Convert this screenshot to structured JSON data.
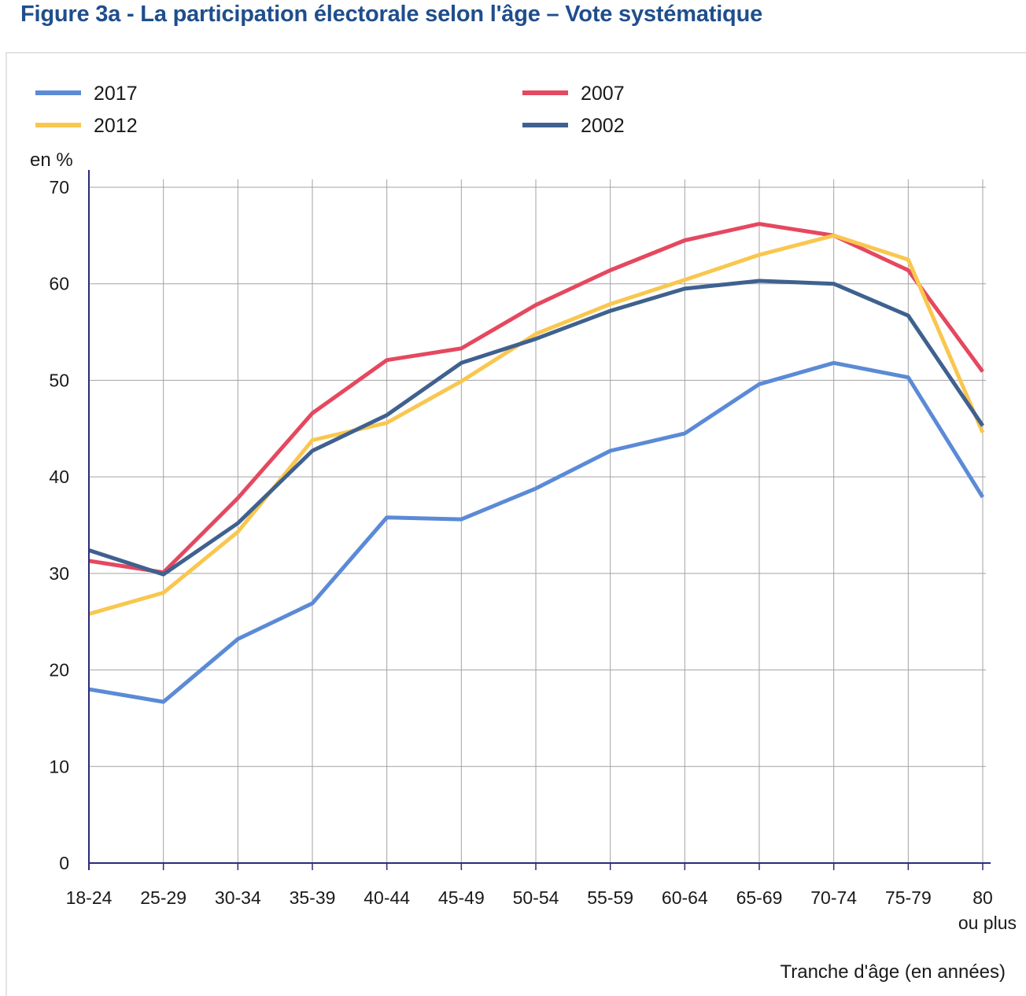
{
  "title": "Figure 3a - La participation électorale selon l'âge – Vote systématique",
  "chart_data": {
    "type": "line",
    "title": "Figure 3a - La participation électorale selon l'âge – Vote systématique",
    "ylabel": "en %",
    "xlabel": "Tranche d'âge (en années)",
    "ylim": [
      0,
      70
    ],
    "yticks": [
      0,
      10,
      20,
      30,
      40,
      50,
      60,
      70
    ],
    "grid": true,
    "legend": "top",
    "categories": [
      "18-24",
      "25-29",
      "30-34",
      "35-39",
      "40-44",
      "45-49",
      "50-54",
      "55-59",
      "60-64",
      "65-69",
      "70-74",
      "75-79",
      "80"
    ],
    "last_category_line2": "ou plus",
    "series": [
      {
        "name": "2017",
        "color": "#5b8ad6",
        "values": [
          18.0,
          16.7,
          23.2,
          26.9,
          35.8,
          35.6,
          38.8,
          42.7,
          44.5,
          49.6,
          51.8,
          50.3,
          37.9
        ]
      },
      {
        "name": "2007",
        "color": "#e5485f",
        "values": [
          31.3,
          30.1,
          37.8,
          46.6,
          52.1,
          53.3,
          57.8,
          61.4,
          64.5,
          66.2,
          65.0,
          61.4,
          50.9
        ]
      },
      {
        "name": "2012",
        "color": "#f9c74f",
        "values": [
          25.8,
          28.0,
          34.3,
          43.8,
          45.6,
          49.9,
          54.8,
          57.9,
          60.4,
          63.0,
          65.0,
          62.5,
          44.6
        ]
      },
      {
        "name": "2002",
        "color": "#3f618f",
        "values": [
          32.4,
          29.9,
          35.2,
          42.7,
          46.4,
          51.8,
          54.3,
          57.2,
          59.5,
          60.3,
          60.0,
          56.7,
          45.3
        ]
      }
    ]
  }
}
